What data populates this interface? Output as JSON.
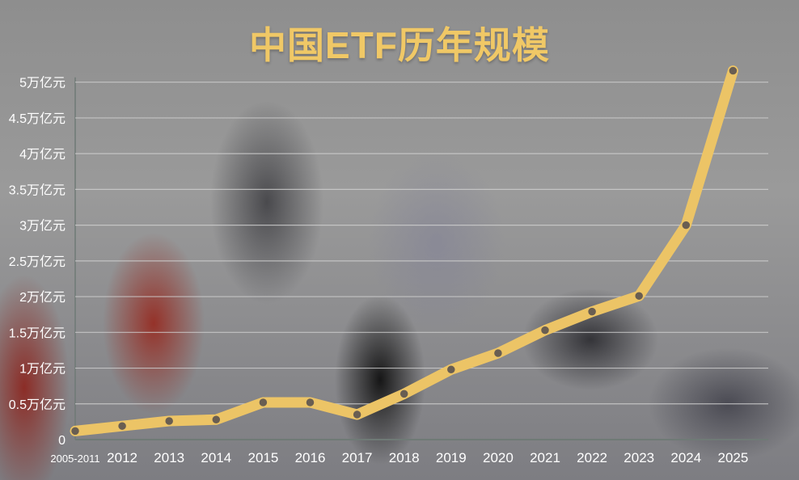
{
  "chart_data": {
    "type": "line",
    "title": "中国ETF历年规模",
    "xlabel": "",
    "ylabel": "",
    "categories": [
      "2005-2011",
      "2012",
      "2013",
      "2014",
      "2015",
      "2016",
      "2017",
      "2018",
      "2019",
      "2020",
      "2021",
      "2022",
      "2023",
      "2024",
      "2025"
    ],
    "values": [
      0.12,
      0.19,
      0.26,
      0.28,
      0.52,
      0.52,
      0.35,
      0.64,
      0.98,
      1.21,
      1.53,
      1.79,
      2.01,
      3.0,
      5.16
    ],
    "unit": "万亿元",
    "ylim": [
      0,
      5
    ],
    "yticks": [
      0,
      0.5,
      1,
      1.5,
      2,
      2.5,
      3,
      3.5,
      4,
      4.5,
      5
    ],
    "ytick_labels": [
      "0",
      "0.5万亿元",
      "1万亿元",
      "1.5万亿元",
      "2万亿元",
      "2.5万亿元",
      "3万亿元",
      "3.5万亿元",
      "4万亿元",
      "4.5万亿元",
      "5万亿元"
    ],
    "grid": true,
    "colors": {
      "line": "#ecc466",
      "title": "#f0c866",
      "marker": "#5b5350",
      "grid": "#d0d0d0"
    }
  }
}
